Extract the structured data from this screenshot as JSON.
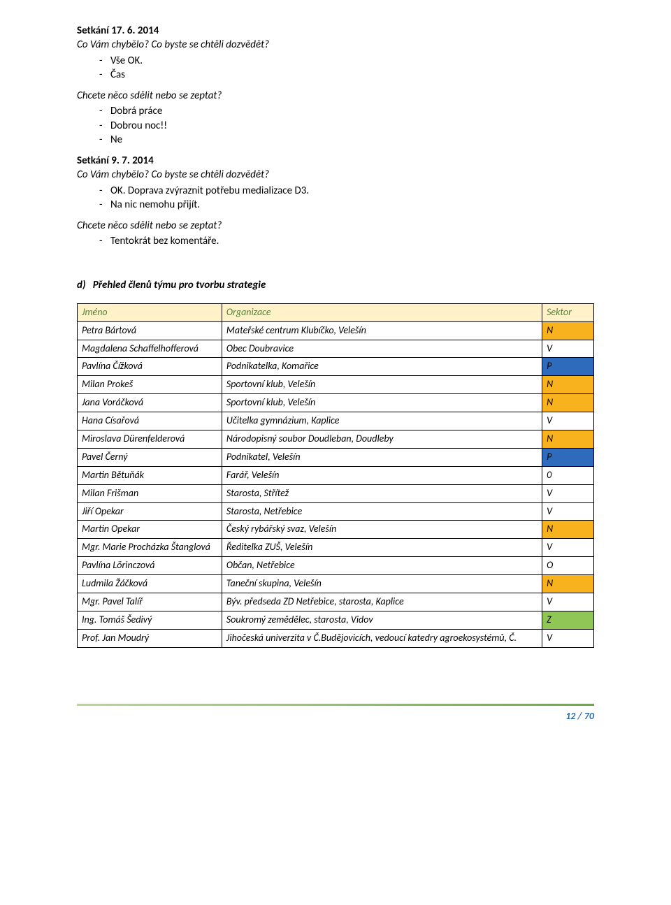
{
  "colors": {
    "header_bg": "#fff2c8",
    "header_fg": "#5a7f3a",
    "sector_N": "#f7b21e",
    "sector_V": "#ffffff",
    "sector_P": "#2f6bbd",
    "sector_0": "#ffffff",
    "sector_O": "#ffffff",
    "sector_Z": "#8fc656",
    "footer_text": "#2a6ba8"
  },
  "sec1": {
    "title": "Setkání 17. 6. 2014",
    "q1": "Co Vám chybělo? Co byste se chtěli dozvědět?",
    "q1_items": [
      "Vše OK.",
      "Čas"
    ],
    "q2": "Chcete něco sdělit nebo se zeptat?",
    "q2_items": [
      "Dobrá práce",
      "Dobrou noc!!",
      "Ne"
    ]
  },
  "sec2": {
    "title": "Setkání 9. 7. 2014",
    "q1": "Co Vám chybělo? Co byste se chtěli dozvědět?",
    "q1_items": [
      "OK. Doprava zvýraznit potřebu medializace D3.",
      "Na nic nemohu přijít."
    ],
    "q2": "Chcete něco sdělit nebo se zeptat?",
    "q2_items": [
      "Tentokrát bez komentáře."
    ]
  },
  "subheading_letter": "d)",
  "subheading_text": "Přehled členů týmu pro tvorbu strategie",
  "table": {
    "columns": [
      "Jméno",
      "Organizace",
      "Sektor"
    ],
    "rows": [
      {
        "name": "Petra Bártová",
        "org": "Mateřské centrum Klubíčko, Velešín",
        "sector": "N"
      },
      {
        "name": "Magdalena Schaffelhofferová",
        "org": "Obec Doubravice",
        "sector": "V"
      },
      {
        "name": "Pavlína Čížková",
        "org": "Podnikatelka, Komařice",
        "sector": "P"
      },
      {
        "name": "Milan Prokeš",
        "org": "Sportovní klub, Velešín",
        "sector": "N"
      },
      {
        "name": "Jana Voráčková",
        "org": "Sportovní klub, Velešín",
        "sector": "N"
      },
      {
        "name": "Hana Císařová",
        "org": "Učitelka gymnázium, Kaplice",
        "sector": "V"
      },
      {
        "name": "Miroslava Dürenfelderová",
        "org": "Národopisný soubor Doudleban, Doudleby",
        "org_just": true,
        "sector": "N"
      },
      {
        "name": "Pavel Černý",
        "org": "Podnikatel, Velešín",
        "sector": "P"
      },
      {
        "name": "Martin Bětuňák",
        "org": "Farář, Velešín",
        "sector": "0"
      },
      {
        "name": "Milan Frišman",
        "org": "Starosta, Střítež",
        "sector": "V"
      },
      {
        "name": "Jiří Opekar",
        "org": "Starosta, Netřebice",
        "sector": "V"
      },
      {
        "name": "Martin Opekar",
        "org": "Český rybářský svaz, Velešín",
        "sector": "N"
      },
      {
        "name": "Mgr. Marie Procházka Štanglová",
        "name_just": true,
        "org": "Ředitelka ZUŠ, Velešín",
        "sector": "V"
      },
      {
        "name": "Pavlína Lörinczová",
        "org": "Občan, Netřebice",
        "sector": "O"
      },
      {
        "name": "Ludmila Žáčková",
        "org": "Taneční skupina, Velešín",
        "sector": "N"
      },
      {
        "name": "Mgr. Pavel Talíř",
        "org": "Býv. předseda ZD Netřebice, starosta, Kaplice",
        "org_just": true,
        "sector": "V"
      },
      {
        "name": "Ing. Tomáš Šedivý",
        "org": "Soukromý zemědělec, starosta, Vidov",
        "sector": "Z"
      },
      {
        "name": "Prof. Jan Moudrý",
        "org": "Jihočeská univerzita v Č.Budějovicích, vedoucí katedry agroekosystémů, Č.",
        "org_just": true,
        "sector": "V"
      }
    ]
  },
  "footer": "12 / 70"
}
